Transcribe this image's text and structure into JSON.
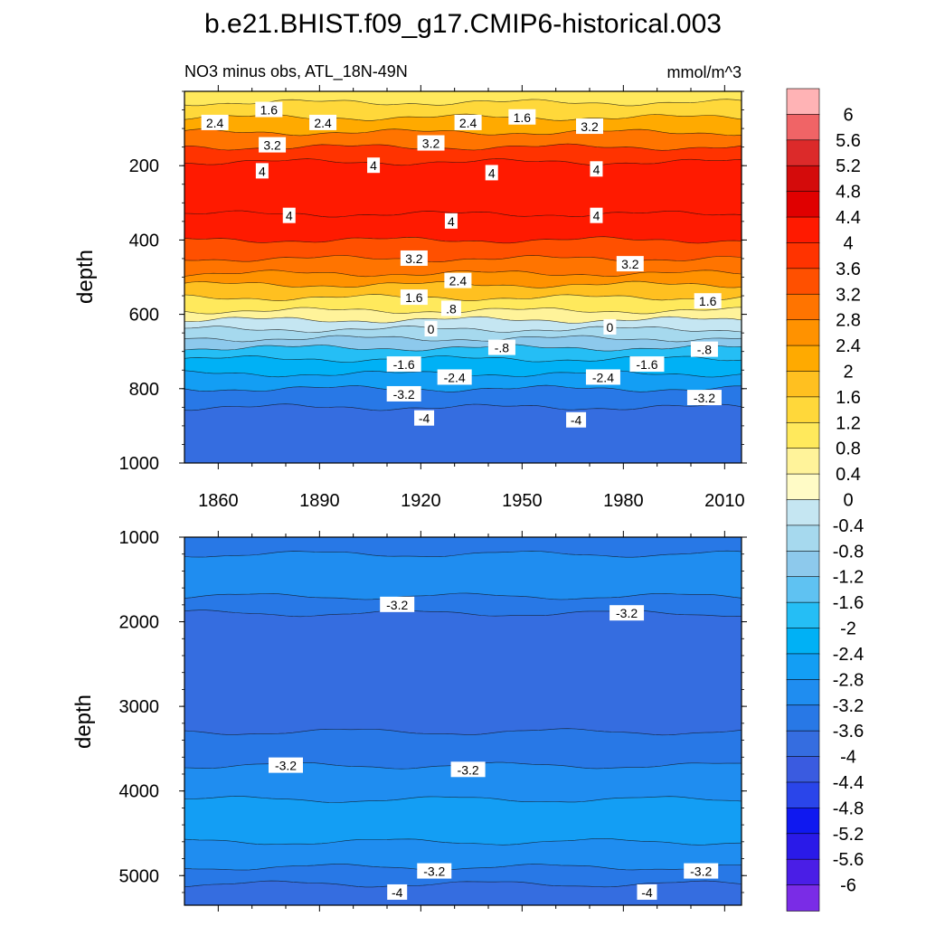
{
  "title": "b.e21.BHIST.f09_g17.CMIP6-historical.003",
  "chart_data": {
    "type": "contour",
    "variable_label": "NO3 minus obs, ATL_18N-49N",
    "units": "mmol/m^3",
    "colorbar": {
      "levels": [
        "6",
        "5.6",
        "5.2",
        "4.8",
        "4.4",
        "4",
        "3.6",
        "3.2",
        "2.8",
        "2.4",
        "2",
        "1.6",
        "1.2",
        "0.8",
        "0.4",
        "0",
        "-0.4",
        "-0.8",
        "-1.2",
        "-1.6",
        "-2",
        "-2.4",
        "-2.8",
        "-3.2",
        "-3.6",
        "-4",
        "-4.4",
        "-4.8",
        "-5.2",
        "-5.6",
        "-6"
      ],
      "colors": [
        "#ffb3b5",
        "#f06466",
        "#dc2a2a",
        "#d40b0b",
        "#e00000",
        "#ff1a00",
        "#ff3300",
        "#ff5000",
        "#ff7400",
        "#ff9200",
        "#ffaa00",
        "#ffc020",
        "#ffd83a",
        "#ffe95c",
        "#fff39a",
        "#fffbc6",
        "#c5e6f2",
        "#a6d9ee",
        "#8dc9ec",
        "#5fc2f2",
        "#25bef5",
        "#00b1f5",
        "#139ef4",
        "#1f8df0",
        "#2878e6",
        "#356de0",
        "#3a5be0",
        "#2a45ea",
        "#0f18f0",
        "#2a1ae8",
        "#4a1ee6",
        "#7a2ce6"
      ]
    },
    "panels": [
      {
        "id": "upper",
        "ylabel": "depth",
        "xlabel": "",
        "xlim": [
          1850,
          2015
        ],
        "ylim": [
          0,
          1000
        ],
        "xticks": [
          1860,
          1890,
          1920,
          1950,
          1980,
          2010
        ],
        "yticks": [
          200,
          400,
          600,
          800,
          1000
        ],
        "layers": [
          {
            "depth_range": [
              0,
              30
            ],
            "value": 1.0
          },
          {
            "depth_range": [
              30,
              70
            ],
            "value": 1.6
          },
          {
            "depth_range": [
              70,
              110
            ],
            "value": 2.4
          },
          {
            "depth_range": [
              110,
              150
            ],
            "value": 3.2
          },
          {
            "depth_range": [
              150,
              190
            ],
            "value": 3.8
          },
          {
            "depth_range": [
              190,
              330
            ],
            "value": 4.4
          },
          {
            "depth_range": [
              330,
              400
            ],
            "value": 4.1
          },
          {
            "depth_range": [
              400,
              450
            ],
            "value": 3.6
          },
          {
            "depth_range": [
              450,
              490
            ],
            "value": 3.2
          },
          {
            "depth_range": [
              490,
              520
            ],
            "value": 2.6
          },
          {
            "depth_range": [
              520,
              555
            ],
            "value": 2.0
          },
          {
            "depth_range": [
              555,
              590
            ],
            "value": 1.2
          },
          {
            "depth_range": [
              590,
              615
            ],
            "value": 0.5
          },
          {
            "depth_range": [
              615,
              640
            ],
            "value": -0.2
          },
          {
            "depth_range": [
              640,
              665
            ],
            "value": -0.6
          },
          {
            "depth_range": [
              665,
              690
            ],
            "value": -1.0
          },
          {
            "depth_range": [
              690,
              720
            ],
            "value": -1.6
          },
          {
            "depth_range": [
              720,
              760
            ],
            "value": -2.2
          },
          {
            "depth_range": [
              760,
              800
            ],
            "value": -2.6
          },
          {
            "depth_range": [
              800,
              850
            ],
            "value": -3.2
          },
          {
            "depth_range": [
              850,
              1000
            ],
            "value": -3.8
          }
        ],
        "contour_labels": [
          {
            "text": "1.6",
            "x": 1875,
            "depth": 50
          },
          {
            "text": "2.4",
            "x": 1859,
            "depth": 85
          },
          {
            "text": "2.4",
            "x": 1891,
            "depth": 85
          },
          {
            "text": "2.4",
            "x": 1934,
            "depth": 85
          },
          {
            "text": "1.6",
            "x": 1950,
            "depth": 70
          },
          {
            "text": "3.2",
            "x": 1970,
            "depth": 95
          },
          {
            "text": "3.2",
            "x": 1876,
            "depth": 145
          },
          {
            "text": "3.2",
            "x": 1923,
            "depth": 140
          },
          {
            "text": "4",
            "x": 1873,
            "depth": 215
          },
          {
            "text": "4",
            "x": 1906,
            "depth": 200
          },
          {
            "text": "4",
            "x": 1881,
            "depth": 335
          },
          {
            "text": "4",
            "x": 1941,
            "depth": 220
          },
          {
            "text": "4",
            "x": 1972,
            "depth": 210
          },
          {
            "text": "4",
            "x": 1929,
            "depth": 350
          },
          {
            "text": "4",
            "x": 1972,
            "depth": 335
          },
          {
            "text": "3.2",
            "x": 1918,
            "depth": 450
          },
          {
            "text": "3.2",
            "x": 1982,
            "depth": 465
          },
          {
            "text": "2.4",
            "x": 1931,
            "depth": 510
          },
          {
            "text": "1.6",
            "x": 1918,
            "depth": 555
          },
          {
            "text": "1.6",
            "x": 2005,
            "depth": 565
          },
          {
            "text": ".8",
            "x": 1929,
            "depth": 585
          },
          {
            "text": "0",
            "x": 1923,
            "depth": 640
          },
          {
            "text": "0",
            "x": 1976,
            "depth": 635
          },
          {
            "text": "-.8",
            "x": 1944,
            "depth": 690
          },
          {
            "text": "-.8",
            "x": 2004,
            "depth": 695
          },
          {
            "text": "-1.6",
            "x": 1915,
            "depth": 735
          },
          {
            "text": "-1.6",
            "x": 1987,
            "depth": 735
          },
          {
            "text": "-2.4",
            "x": 1930,
            "depth": 770
          },
          {
            "text": "-2.4",
            "x": 1974,
            "depth": 770
          },
          {
            "text": "-3.2",
            "x": 1915,
            "depth": 815
          },
          {
            "text": "-3.2",
            "x": 2004,
            "depth": 825
          },
          {
            "text": "-4",
            "x": 1921,
            "depth": 880
          },
          {
            "text": "-4",
            "x": 1966,
            "depth": 885
          }
        ]
      },
      {
        "id": "lower",
        "ylabel": "depth",
        "xlabel": "",
        "xlim": [
          1850,
          2015
        ],
        "ylim": [
          1000,
          5350
        ],
        "xticks": [],
        "yticks": [
          1000,
          2000,
          3000,
          4000,
          5000
        ],
        "layers": [
          {
            "depth_range": [
              1000,
              1200
            ],
            "value": -3.4
          },
          {
            "depth_range": [
              1200,
              1700
            ],
            "value": -2.9
          },
          {
            "depth_range": [
              1700,
              1900
            ],
            "value": -3.4
          },
          {
            "depth_range": [
              1900,
              3300
            ],
            "value": -3.7
          },
          {
            "depth_range": [
              3300,
              3700
            ],
            "value": -3.3
          },
          {
            "depth_range": [
              3700,
              4100
            ],
            "value": -2.9
          },
          {
            "depth_range": [
              4100,
              4600
            ],
            "value": -2.5
          },
          {
            "depth_range": [
              4600,
              4900
            ],
            "value": -2.9
          },
          {
            "depth_range": [
              4900,
              5100
            ],
            "value": -3.4
          },
          {
            "depth_range": [
              5100,
              5350
            ],
            "value": -3.9
          }
        ],
        "contour_labels": [
          {
            "text": "-3.2",
            "x": 1913,
            "depth": 1800
          },
          {
            "text": "-3.2",
            "x": 1981,
            "depth": 1900
          },
          {
            "text": "-3.2",
            "x": 1880,
            "depth": 3700
          },
          {
            "text": "-3.2",
            "x": 1934,
            "depth": 3750
          },
          {
            "text": "-3.2",
            "x": 1924,
            "depth": 4950
          },
          {
            "text": "-3.2",
            "x": 2003,
            "depth": 4950
          },
          {
            "text": "-4",
            "x": 1913,
            "depth": 5200
          },
          {
            "text": "-4",
            "x": 1987,
            "depth": 5200
          }
        ]
      }
    ]
  }
}
